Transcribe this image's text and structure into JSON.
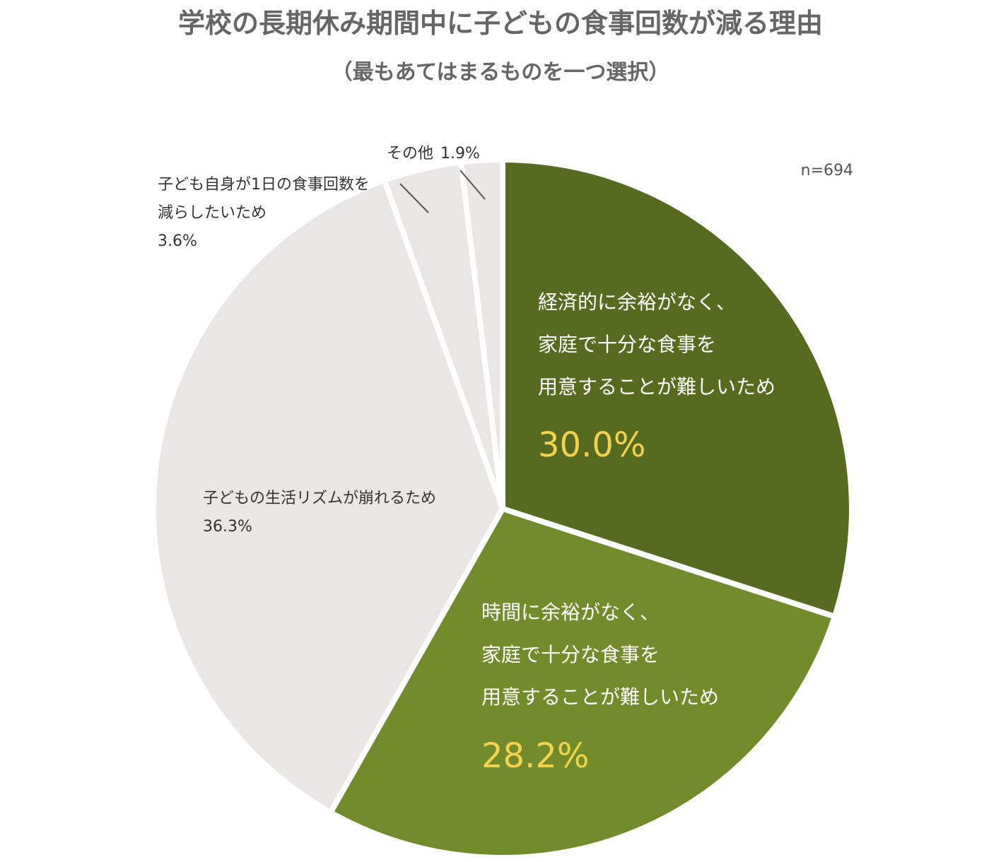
{
  "chart_data": {
    "type": "pie",
    "title": "学校の長期休み期間中に子どもの食事回数が減る理由",
    "subtitle": "（最もあてはまるものを一つ選択）",
    "sample_size": "n=694",
    "slices": [
      {
        "label_lines": [
          "経済的に余裕がなく、",
          "家庭で十分な食事を",
          "用意することが難しいため"
        ],
        "value": 30.0,
        "value_label": "30.0%",
        "color": "#566b20"
      },
      {
        "label_lines": [
          "時間に余裕がなく、",
          "家庭で十分な食事を",
          "用意することが難しいため"
        ],
        "value": 28.2,
        "value_label": "28.2%",
        "color": "#728b2b"
      },
      {
        "label_lines": [
          "子どもの生活リズムが崩れるため"
        ],
        "value": 36.3,
        "value_label": "36.3%",
        "color": "#eae6e3"
      },
      {
        "label_lines": [
          "子ども自身が1日の食事回数を",
          "減らしたいため"
        ],
        "value": 3.6,
        "value_label": "3.6%",
        "color": "#eae6e3"
      },
      {
        "label_lines": [
          "その他"
        ],
        "value": 1.9,
        "value_label": "1.9%",
        "color": "#eae6e3"
      }
    ],
    "colors": {
      "title": "#666666",
      "label_dark": "#333333",
      "label_light": "#ffffff",
      "value_highlight": "#f5d24b",
      "separator": "#ffffff",
      "leader_line": "#555555"
    }
  }
}
